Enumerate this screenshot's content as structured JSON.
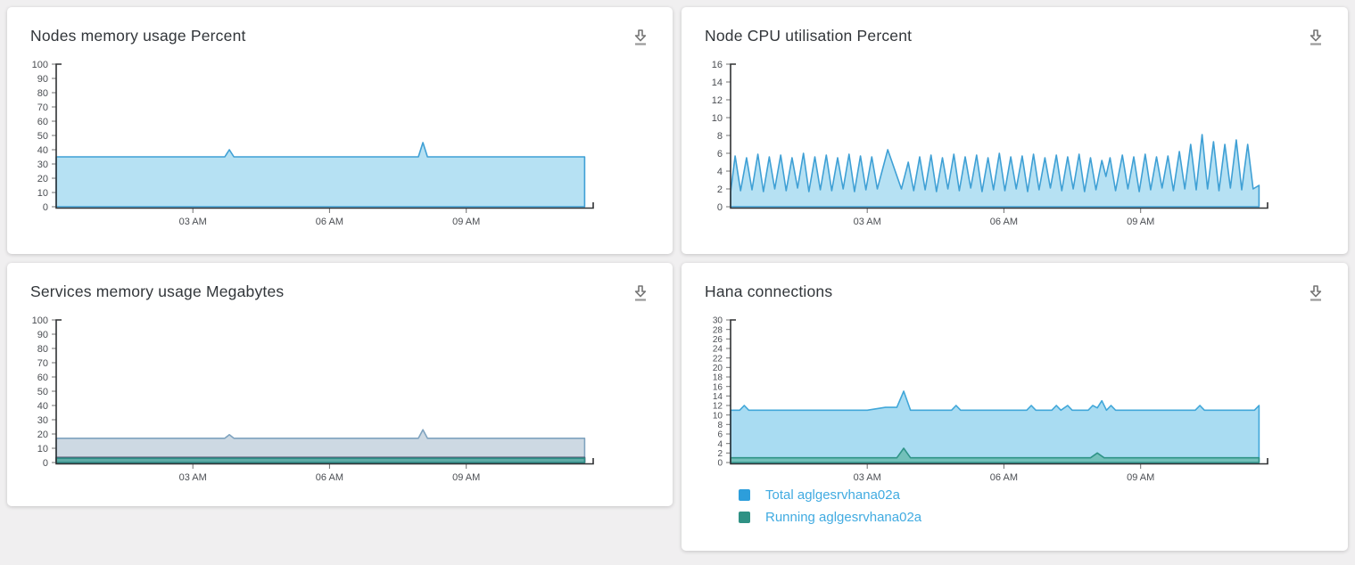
{
  "colors": {
    "page_bg": "#f0eff0",
    "panel_bg": "#ffffff",
    "title": "#32363a",
    "tick_label": "#4b4e53",
    "tick_mark": "#707070",
    "axis": "#303234",
    "legend_text": "#41abe1",
    "icon": "#757575"
  },
  "icons": {
    "download": "arrow-down-to-line"
  },
  "chart_data": [
    {
      "type": "area",
      "title": "Nodes memory usage Percent",
      "ylim": [
        0,
        100
      ],
      "ytick_step": 10,
      "x_hours": [
        0,
        11.65
      ],
      "xticks": [
        {
          "hour": 3,
          "label": "03 AM"
        },
        {
          "hour": 6,
          "label": "06 AM"
        },
        {
          "hour": 9,
          "label": "09 AM"
        }
      ],
      "grid": false,
      "series": [
        {
          "stroke": "#3fa0d5",
          "fill": "#b6e1f3",
          "points": [
            [
              0,
              35
            ],
            [
              3.7,
              35
            ],
            [
              3.8,
              40
            ],
            [
              3.9,
              35
            ],
            [
              7.95,
              35
            ],
            [
              8.05,
              45
            ],
            [
              8.15,
              35
            ],
            [
              11.6,
              35
            ]
          ]
        }
      ]
    },
    {
      "type": "area",
      "title": "Node CPU utilisation Percent",
      "ylim": [
        0,
        16
      ],
      "ytick_step": 2,
      "x_hours": [
        0,
        11.65
      ],
      "xticks": [
        {
          "hour": 3,
          "label": "03 AM"
        },
        {
          "hour": 6,
          "label": "06 AM"
        },
        {
          "hour": 9,
          "label": "09 AM"
        }
      ],
      "grid": false,
      "series": [
        {
          "stroke": "#3fa0d5",
          "fill": "#b6e1f3",
          "points": [
            [
              0,
              1.6
            ],
            [
              0.1,
              5.7
            ],
            [
              0.22,
              1.8
            ],
            [
              0.35,
              5.5
            ],
            [
              0.47,
              1.9
            ],
            [
              0.6,
              5.9
            ],
            [
              0.72,
              1.7
            ],
            [
              0.85,
              5.6
            ],
            [
              0.97,
              2.0
            ],
            [
              1.1,
              5.8
            ],
            [
              1.22,
              1.8
            ],
            [
              1.35,
              5.5
            ],
            [
              1.47,
              2.1
            ],
            [
              1.6,
              6.0
            ],
            [
              1.72,
              1.7
            ],
            [
              1.85,
              5.6
            ],
            [
              1.97,
              1.9
            ],
            [
              2.1,
              5.8
            ],
            [
              2.22,
              1.8
            ],
            [
              2.35,
              5.5
            ],
            [
              2.47,
              2.0
            ],
            [
              2.6,
              5.9
            ],
            [
              2.72,
              1.7
            ],
            [
              2.85,
              5.7
            ],
            [
              2.97,
              1.9
            ],
            [
              3.1,
              5.6
            ],
            [
              3.22,
              2.0
            ],
            [
              3.45,
              6.4
            ],
            [
              3.75,
              2.0
            ],
            [
              3.9,
              5.0
            ],
            [
              4.02,
              1.8
            ],
            [
              4.15,
              5.6
            ],
            [
              4.27,
              1.9
            ],
            [
              4.4,
              5.8
            ],
            [
              4.52,
              1.7
            ],
            [
              4.65,
              5.5
            ],
            [
              4.77,
              2.0
            ],
            [
              4.9,
              5.9
            ],
            [
              5.02,
              1.8
            ],
            [
              5.15,
              5.6
            ],
            [
              5.27,
              2.1
            ],
            [
              5.4,
              5.8
            ],
            [
              5.52,
              1.7
            ],
            [
              5.65,
              5.5
            ],
            [
              5.77,
              1.9
            ],
            [
              5.9,
              6.0
            ],
            [
              6.02,
              1.8
            ],
            [
              6.15,
              5.6
            ],
            [
              6.27,
              2.0
            ],
            [
              6.4,
              5.7
            ],
            [
              6.52,
              1.7
            ],
            [
              6.65,
              5.9
            ],
            [
              6.77,
              1.9
            ],
            [
              6.9,
              5.5
            ],
            [
              7.02,
              2.1
            ],
            [
              7.15,
              5.8
            ],
            [
              7.27,
              1.8
            ],
            [
              7.4,
              5.6
            ],
            [
              7.52,
              2.0
            ],
            [
              7.65,
              5.9
            ],
            [
              7.77,
              1.7
            ],
            [
              7.9,
              5.5
            ],
            [
              8.02,
              1.9
            ],
            [
              8.15,
              5.2
            ],
            [
              8.24,
              3.4
            ],
            [
              8.33,
              5.5
            ],
            [
              8.45,
              1.8
            ],
            [
              8.6,
              5.8
            ],
            [
              8.72,
              2.0
            ],
            [
              8.85,
              5.6
            ],
            [
              8.97,
              1.7
            ],
            [
              9.1,
              5.9
            ],
            [
              9.22,
              1.9
            ],
            [
              9.35,
              5.6
            ],
            [
              9.47,
              2.1
            ],
            [
              9.6,
              5.7
            ],
            [
              9.72,
              1.8
            ],
            [
              9.85,
              6.2
            ],
            [
              9.97,
              2.0
            ],
            [
              10.1,
              7.0
            ],
            [
              10.22,
              1.9
            ],
            [
              10.35,
              8.1
            ],
            [
              10.47,
              2.0
            ],
            [
              10.6,
              7.3
            ],
            [
              10.72,
              1.8
            ],
            [
              10.85,
              7.0
            ],
            [
              10.97,
              2.1
            ],
            [
              11.1,
              7.5
            ],
            [
              11.22,
              1.9
            ],
            [
              11.35,
              7.0
            ],
            [
              11.47,
              2.0
            ],
            [
              11.6,
              2.4
            ]
          ]
        }
      ]
    },
    {
      "type": "area",
      "title": "Services memory usage Megabytes",
      "ylim": [
        0,
        100
      ],
      "ytick_step": 10,
      "x_hours": [
        0,
        11.65
      ],
      "xticks": [
        {
          "hour": 3,
          "label": "03 AM"
        },
        {
          "hour": 6,
          "label": "06 AM"
        },
        {
          "hour": 9,
          "label": "09 AM"
        }
      ],
      "grid": false,
      "series": [
        {
          "stroke": "#7fa3bf",
          "fill": "#cdd9e3",
          "points": [
            [
              0,
              17
            ],
            [
              3.7,
              17
            ],
            [
              3.8,
              19.5
            ],
            [
              3.9,
              17
            ],
            [
              7.95,
              17
            ],
            [
              8.05,
              23
            ],
            [
              8.15,
              17
            ],
            [
              11.6,
              17
            ]
          ]
        },
        {
          "stroke": "#55516e",
          "fill": "none",
          "fill_opacity": 0,
          "stroke_width": 1.8,
          "points": [
            [
              0,
              3.5
            ],
            [
              11.6,
              3.5
            ]
          ]
        },
        {
          "stroke": "#2d8d86",
          "fill": "#4aa29b",
          "fill_opacity": 0.85,
          "points": [
            [
              0,
              3
            ],
            [
              11.6,
              3
            ]
          ]
        }
      ]
    },
    {
      "type": "area",
      "title": "Hana connections",
      "ylim": [
        0,
        30
      ],
      "ytick_step": 2,
      "ytick_font": 10,
      "x_hours": [
        0,
        11.65
      ],
      "xticks": [
        {
          "hour": 3,
          "label": "03 AM"
        },
        {
          "hour": 6,
          "label": "06 AM"
        },
        {
          "hour": 9,
          "label": "09 AM"
        }
      ],
      "grid": false,
      "series": [
        {
          "name": "Total aglgesrvhana02a",
          "stroke": "#41a7d9",
          "fill": "#a9dcf2",
          "points": [
            [
              0,
              11
            ],
            [
              0.2,
              11
            ],
            [
              0.3,
              12
            ],
            [
              0.4,
              11
            ],
            [
              3.0,
              11
            ],
            [
              3.4,
              11.6
            ],
            [
              3.65,
              11.6
            ],
            [
              3.8,
              15
            ],
            [
              3.95,
              11
            ],
            [
              4.85,
              11
            ],
            [
              4.95,
              12
            ],
            [
              5.05,
              11
            ],
            [
              6.5,
              11
            ],
            [
              6.6,
              12
            ],
            [
              6.7,
              11
            ],
            [
              7.05,
              11
            ],
            [
              7.15,
              12
            ],
            [
              7.25,
              11
            ],
            [
              7.4,
              12
            ],
            [
              7.5,
              11
            ],
            [
              7.85,
              11
            ],
            [
              7.95,
              12
            ],
            [
              8.05,
              11.5
            ],
            [
              8.15,
              13
            ],
            [
              8.25,
              11
            ],
            [
              8.35,
              12
            ],
            [
              8.45,
              11
            ],
            [
              10.2,
              11
            ],
            [
              10.3,
              12
            ],
            [
              10.4,
              11
            ],
            [
              11.5,
              11
            ],
            [
              11.6,
              12
            ]
          ]
        },
        {
          "name": "Running aglgesrvhana02a",
          "stroke": "#2f9488",
          "fill": "#6dbcb4",
          "fill_opacity": 0.9,
          "points": [
            [
              0,
              1
            ],
            [
              3.65,
              1
            ],
            [
              3.8,
              3
            ],
            [
              3.95,
              1
            ],
            [
              7.9,
              1
            ],
            [
              8.05,
              2
            ],
            [
              8.2,
              1
            ],
            [
              11.6,
              1
            ]
          ]
        }
      ],
      "legend": [
        {
          "label": "Total aglgesrvhana02a",
          "color": "#2d9edb"
        },
        {
          "label": "Running aglgesrvhana02a",
          "color": "#2f9184"
        }
      ],
      "legend_position": "bottom-left"
    }
  ]
}
